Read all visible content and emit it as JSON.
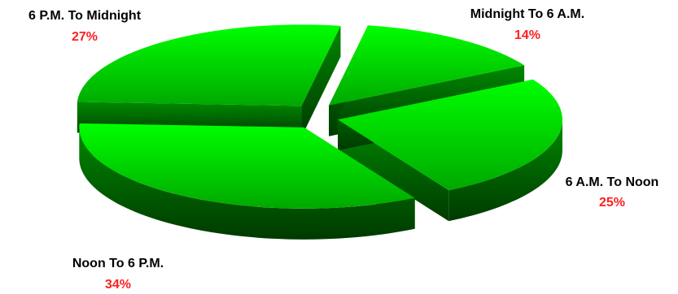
{
  "chart_data": {
    "type": "pie",
    "title": "",
    "categories": [
      "Midnight To 6 A.M.",
      "6 A.M. To Noon",
      "Noon To 6 P.M.",
      "6 P.M. To Midnight"
    ],
    "values": [
      14,
      25,
      34,
      27
    ],
    "value_labels": [
      "14%",
      "25%",
      "34%",
      "27%"
    ],
    "style": "3d-exploded",
    "colors": {
      "slice_light": "#00ff00",
      "slice_dark": "#00a800",
      "side_light": "#008a00",
      "side_dark": "#003a00",
      "percent_text": "#ff2020"
    }
  }
}
